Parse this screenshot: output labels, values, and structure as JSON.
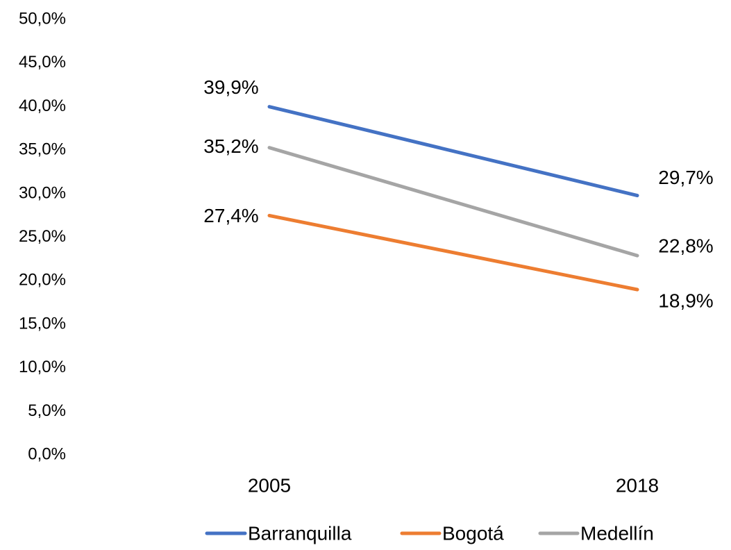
{
  "chart_data": {
    "type": "line",
    "title": "",
    "xlabel": "",
    "ylabel": "",
    "categories": [
      "2005",
      "2018"
    ],
    "ylim": [
      0,
      50
    ],
    "y_ticks": [
      "0,0%",
      "5,0%",
      "10,0%",
      "15,0%",
      "20,0%",
      "25,0%",
      "30,0%",
      "35,0%",
      "40,0%",
      "45,0%",
      "50,0%"
    ],
    "grid": false,
    "legend_position": "bottom",
    "series": [
      {
        "name": "Barranquilla",
        "values": [
          39.9,
          29.7
        ],
        "labels": [
          "39,9%",
          "29,7%"
        ],
        "color": "#4472C4"
      },
      {
        "name": "Bogotá",
        "values": [
          27.4,
          18.9
        ],
        "labels": [
          "27,4%",
          "18,9%"
        ],
        "color": "#ED7D31"
      },
      {
        "name": "Medellín",
        "values": [
          35.2,
          22.8
        ],
        "labels": [
          "35,2%",
          "22,8%"
        ],
        "color": "#A5A5A5"
      }
    ]
  }
}
